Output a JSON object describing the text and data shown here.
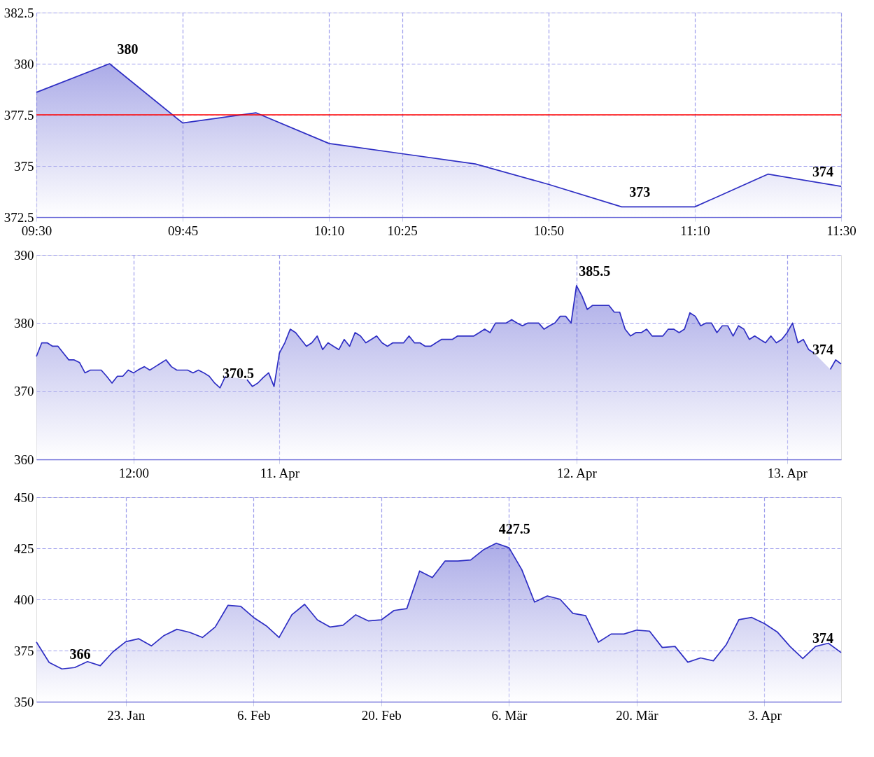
{
  "chart_data": [
    {
      "type": "area",
      "categories": [
        "09:30",
        null,
        "09:45",
        null,
        "10:10",
        "10:25",
        null,
        "10:50",
        null,
        "11:10",
        null,
        "11:30"
      ],
      "series": [
        {
          "color": "#2e2ec4",
          "values": [
            378.6,
            380,
            377.1,
            377.6,
            376.1,
            375.6,
            375.1,
            374.1,
            373,
            373,
            374.6,
            374
          ],
          "value_labels": [
            null,
            "380",
            null,
            null,
            null,
            null,
            null,
            null,
            "373",
            null,
            null,
            "374"
          ]
        }
      ],
      "ylim": [
        372.5,
        382.5
      ],
      "yticks": [
        372.5,
        375,
        377.5,
        380,
        382.5
      ],
      "grid": true,
      "ref_lines": [
        {
          "axis": "y",
          "value": 377.5,
          "color": "#ff0000"
        }
      ]
    },
    {
      "type": "area",
      "categories": [
        null,
        null,
        null,
        null,
        null,
        null,
        null,
        null,
        null,
        null,
        null,
        null,
        null,
        null,
        null,
        null,
        null,
        null,
        "12:00",
        null,
        null,
        null,
        null,
        null,
        null,
        null,
        null,
        null,
        null,
        null,
        null,
        null,
        null,
        null,
        null,
        null,
        null,
        null,
        null,
        null,
        null,
        null,
        null,
        null,
        null,
        "11. Apr",
        null,
        null,
        null,
        null,
        null,
        null,
        null,
        null,
        null,
        null,
        null,
        null,
        null,
        null,
        null,
        null,
        null,
        null,
        null,
        null,
        null,
        null,
        null,
        null,
        null,
        null,
        null,
        null,
        null,
        null,
        null,
        null,
        null,
        null,
        null,
        null,
        null,
        null,
        null,
        null,
        null,
        null,
        null,
        null,
        null,
        null,
        null,
        null,
        null,
        null,
        null,
        null,
        null,
        null,
        "12. Apr",
        null,
        null,
        null,
        null,
        null,
        null,
        null,
        null,
        null,
        null,
        null,
        null,
        null,
        null,
        null,
        null,
        null,
        null,
        null,
        null,
        null,
        null,
        null,
        null,
        null,
        null,
        null,
        null,
        null,
        null,
        null,
        null,
        null,
        null,
        null,
        null,
        null,
        null,
        "13. Apr",
        null,
        null,
        null,
        null,
        null,
        null,
        null,
        null,
        null,
        null
      ],
      "series": [
        {
          "color": "#2e2ec4",
          "values": [
            375.1,
            377.1,
            377.1,
            376.6,
            376.6,
            375.6,
            374.6,
            374.6,
            374.2,
            372.7,
            373.1,
            373.1,
            373.1,
            372.2,
            371.2,
            372.2,
            372.2,
            373.1,
            372.7,
            373.2,
            373.6,
            373.1,
            373.6,
            374.1,
            374.6,
            373.6,
            373.1,
            373.1,
            373.1,
            372.7,
            373.1,
            372.7,
            372.2,
            371.2,
            370.5,
            372.2,
            null,
            null,
            null,
            371.7,
            370.7,
            371.2,
            372,
            372.7,
            370.7,
            375.6,
            377.1,
            379.1,
            378.6,
            377.6,
            376.6,
            377.1,
            378.1,
            376.1,
            377.1,
            376.6,
            376.1,
            377.6,
            376.6,
            378.6,
            378.1,
            377.1,
            377.6,
            378.1,
            377.1,
            376.6,
            377.1,
            377.1,
            377.1,
            378.1,
            377.1,
            377.1,
            376.6,
            376.6,
            377.1,
            377.6,
            377.6,
            377.6,
            378.1,
            378.1,
            378.1,
            378.1,
            378.6,
            379.1,
            378.6,
            380,
            380,
            380,
            380.5,
            380,
            379.6,
            380,
            380,
            380,
            379.1,
            379.6,
            380,
            381,
            381,
            380,
            385.5,
            384,
            382,
            382.6,
            382.6,
            382.6,
            382.6,
            381.6,
            381.6,
            379.1,
            378.1,
            378.6,
            378.6,
            379.1,
            378.1,
            378.1,
            378.1,
            379.1,
            379.1,
            378.6,
            379.1,
            381.5,
            381,
            379.6,
            380,
            380,
            378.6,
            379.6,
            379.6,
            378.1,
            379.6,
            379.1,
            377.6,
            378.1,
            377.6,
            377.1,
            378.1,
            377.1,
            377.6,
            378.6,
            380,
            377.1,
            377.6,
            376.1,
            375.6,
            null,
            null,
            373.2,
            374.6,
            374
          ],
          "value_labels": [
            null,
            null,
            null,
            null,
            null,
            null,
            null,
            null,
            null,
            null,
            null,
            null,
            null,
            null,
            null,
            null,
            null,
            null,
            null,
            null,
            null,
            null,
            null,
            null,
            null,
            null,
            null,
            null,
            null,
            null,
            null,
            null,
            null,
            null,
            "370.5",
            null,
            null,
            null,
            null,
            null,
            null,
            null,
            null,
            null,
            null,
            null,
            null,
            null,
            null,
            null,
            null,
            null,
            null,
            null,
            null,
            null,
            null,
            null,
            null,
            null,
            null,
            null,
            null,
            null,
            null,
            null,
            null,
            null,
            null,
            null,
            null,
            null,
            null,
            null,
            null,
            null,
            null,
            null,
            null,
            null,
            null,
            null,
            null,
            null,
            null,
            null,
            null,
            null,
            null,
            null,
            null,
            null,
            null,
            null,
            null,
            null,
            null,
            null,
            null,
            null,
            "385.5",
            null,
            null,
            null,
            null,
            null,
            null,
            null,
            null,
            null,
            null,
            null,
            null,
            null,
            null,
            null,
            null,
            null,
            null,
            null,
            null,
            null,
            null,
            null,
            null,
            null,
            null,
            null,
            null,
            null,
            null,
            null,
            null,
            null,
            null,
            null,
            null,
            null,
            null,
            null,
            null,
            null,
            null,
            null,
            null,
            null,
            null,
            null,
            null,
            "374"
          ]
        }
      ],
      "ylim": [
        360,
        390
      ],
      "yticks": [
        360,
        370,
        380,
        390
      ],
      "grid": true
    },
    {
      "type": "area",
      "categories": [
        null,
        null,
        null,
        null,
        null,
        null,
        null,
        "23. Jan",
        null,
        null,
        null,
        null,
        null,
        null,
        null,
        null,
        null,
        "6. Feb",
        null,
        null,
        null,
        null,
        null,
        null,
        null,
        null,
        null,
        "20. Feb",
        null,
        null,
        null,
        null,
        null,
        null,
        null,
        null,
        null,
        "6. Mär",
        null,
        null,
        null,
        null,
        null,
        null,
        null,
        null,
        null,
        "20. Mär",
        null,
        null,
        null,
        null,
        null,
        null,
        null,
        null,
        null,
        "3. Apr",
        null,
        null,
        null,
        null,
        null,
        null
      ],
      "series": [
        {
          "color": "#2e2ec4",
          "values": [
            379.2,
            369.2,
            366,
            366.7,
            369.6,
            367.6,
            374.4,
            379.3,
            380.8,
            377.3,
            382.4,
            385.4,
            383.9,
            381.4,
            386.5,
            397.1,
            396.6,
            391.2,
            387.1,
            381.4,
            392.5,
            397.6,
            390,
            386.5,
            387.4,
            392.5,
            389.5,
            390,
            394.6,
            395.5,
            413.9,
            410.7,
            418.8,
            418.8,
            419.3,
            424.3,
            427.5,
            425.3,
            414.6,
            398.7,
            401.7,
            400.1,
            393.2,
            392.1,
            379.1,
            383.1,
            383.1,
            385,
            384.5,
            376.5,
            377,
            369.3,
            371.4,
            370,
            377.8,
            390.1,
            391.2,
            388.2,
            384.1,
            377,
            371.1,
            377,
            378.6,
            374
          ],
          "value_labels": [
            null,
            null,
            "366",
            null,
            null,
            null,
            null,
            null,
            null,
            null,
            null,
            null,
            null,
            null,
            null,
            null,
            null,
            null,
            null,
            null,
            null,
            null,
            null,
            null,
            null,
            null,
            null,
            null,
            null,
            null,
            null,
            null,
            null,
            null,
            null,
            null,
            "427.5",
            null,
            null,
            null,
            null,
            null,
            null,
            null,
            null,
            null,
            null,
            null,
            null,
            null,
            null,
            null,
            null,
            null,
            null,
            null,
            null,
            null,
            null,
            null,
            null,
            null,
            null,
            "374"
          ]
        }
      ],
      "ylim": [
        350,
        450
      ],
      "yticks": [
        350,
        375,
        400,
        425,
        450
      ],
      "grid": true
    }
  ]
}
